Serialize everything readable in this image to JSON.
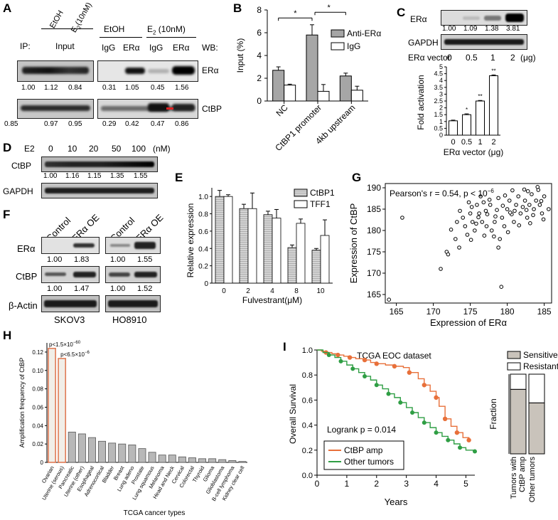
{
  "A": {
    "label": "A",
    "ip_label": "IP:",
    "wb_label": "WB:",
    "hdr_etoh": "EtOH",
    "hdr_e2": "E",
    "hdr_e2_sub": "2",
    "hdr_e2_conc": "(10nM)",
    "hdr_input": "Input",
    "hdr_etoh2": "EtOH",
    "hdr_e2b": "E",
    "hdr_e2b_sub": "2",
    "hdr_e2b_conc": " (10nM)",
    "lanes_right": [
      "IgG",
      "ERα",
      "IgG",
      "ERα"
    ],
    "row1_label": "ERα",
    "row2_label": "CtBP",
    "row1_values": [
      "1.00",
      "1.12",
      "0.84",
      "0.31",
      "1.05",
      "0.45",
      "1.56"
    ],
    "row2_values": [
      "0.85",
      "0.97",
      "0.95",
      "0.29",
      "0.42",
      "0.47",
      "0.86"
    ]
  },
  "B": {
    "label": "B",
    "chart_data": {
      "type": "bar",
      "ylabel": "Input (%)",
      "ylim": [
        0,
        8
      ],
      "yticks": [
        "0",
        "2",
        "4",
        "6",
        "8"
      ],
      "categories": [
        "NC",
        "CtBP1 promoter",
        "4kb upstream"
      ],
      "series": [
        {
          "name": "Anti-ERα",
          "values": [
            2.7,
            5.8,
            2.2
          ],
          "err": [
            0.3,
            0.9,
            0.25
          ],
          "color": "#a6a6a6"
        },
        {
          "name": "IgG",
          "values": [
            1.4,
            0.85,
            0.95
          ],
          "err": [
            0.08,
            0.6,
            0.35
          ],
          "color": "#ffffff"
        }
      ],
      "significance": [
        "*",
        "*"
      ]
    }
  },
  "C": {
    "label": "C",
    "blot_label1": "ERα",
    "blot_label2": "GAPDH",
    "blot_values": [
      "1.00",
      "1.09",
      "1.38",
      "3.81"
    ],
    "vector_label": "ERα vector",
    "vector_doses": [
      "0",
      "0.5",
      "1",
      "2"
    ],
    "vector_unit": "(μg)",
    "chart_data": {
      "type": "bar",
      "ylabel": "Fold activation",
      "xlabel": "ERα vector (μg)",
      "ylim": [
        0,
        5
      ],
      "yticks": [
        "0",
        "0.5",
        "1",
        "1.5",
        "2",
        "2.5",
        "3",
        "3.5",
        "4",
        "4.5",
        "5"
      ],
      "categories": [
        "0",
        "0.5",
        "1",
        "2"
      ],
      "values": [
        1.05,
        1.5,
        2.5,
        4.35
      ],
      "err": [
        0.05,
        0.06,
        0.04,
        0.06
      ],
      "significance": [
        "",
        "*",
        "**",
        "**"
      ]
    }
  },
  "D": {
    "label": "D",
    "e2_label": "E2",
    "doses": [
      "0",
      "10",
      "20",
      "50",
      "100"
    ],
    "unit": "(nM)",
    "row1_label": "CtBP",
    "row2_label": "GAPDH",
    "values": [
      "1.00",
      "1.16",
      "1.15",
      "1.35",
      "1.55"
    ]
  },
  "E": {
    "label": "E",
    "chart_data": {
      "type": "bar",
      "ylabel": "Relative expression",
      "xlabel": "Fulvestrant(μM)",
      "ylim": [
        0,
        1.0
      ],
      "yticks": [
        "0",
        "0.2",
        "0.4",
        "0.6",
        "0.8",
        "1.0"
      ],
      "categories": [
        "0",
        "2",
        "4",
        "8",
        "10"
      ],
      "series": [
        {
          "name": "CtBP1",
          "values": [
            1.0,
            0.86,
            0.79,
            0.41,
            0.38
          ],
          "err": [
            0.07,
            0.05,
            0.04,
            0.03,
            0.02
          ]
        },
        {
          "name": "TFF1",
          "values": [
            1.0,
            0.86,
            0.75,
            0.69,
            0.55
          ],
          "err": [
            0.02,
            0.18,
            0.1,
            0.05,
            0.18
          ]
        }
      ]
    }
  },
  "F": {
    "label": "F",
    "col_labels": [
      "Control",
      "ERα OE",
      "Control",
      "ERα OE"
    ],
    "row_labels": [
      "ERα",
      "CtBP",
      "β-Actin"
    ],
    "era_values": [
      "1.00",
      "1.83",
      "1.00",
      "1.55"
    ],
    "ctbp_values": [
      "1.00",
      "1.47",
      "1.00",
      "1.52"
    ],
    "cell_lines": [
      "SKOV3",
      "HO8910"
    ]
  },
  "G": {
    "label": "G",
    "chart_data": {
      "type": "scatter",
      "annotation": "Pearson's r = 0.54, p < 10",
      "annotation_exp": "−6",
      "xlabel": "Expression of ERα",
      "ylabel": "Expression of CtBP",
      "xlim": [
        163.5,
        186
      ],
      "ylim": [
        163,
        191
      ],
      "xticks": [
        "165",
        "170",
        "175",
        "180",
        "185"
      ],
      "yticks": [
        "165",
        "170",
        "175",
        "180",
        "185",
        "190"
      ],
      "points": [
        [
          164,
          163.8
        ],
        [
          165.8,
          183
        ],
        [
          171,
          171
        ],
        [
          171.8,
          175
        ],
        [
          172,
          174.4
        ],
        [
          173,
          178
        ],
        [
          173.5,
          176
        ],
        [
          173.2,
          182
        ],
        [
          174,
          183
        ],
        [
          174.3,
          181
        ],
        [
          174.6,
          179
        ],
        [
          175,
          184
        ],
        [
          175.3,
          182
        ],
        [
          175.6,
          180
        ],
        [
          175.1,
          177.8
        ],
        [
          175.9,
          186
        ],
        [
          176.2,
          184
        ],
        [
          176.6,
          182
        ],
        [
          176.9,
          178.8
        ],
        [
          177.2,
          181
        ],
        [
          177.3,
          183.8
        ],
        [
          177.7,
          186
        ],
        [
          177.9,
          180
        ],
        [
          178.3,
          182
        ],
        [
          178.6,
          184.8
        ],
        [
          178.8,
          176
        ],
        [
          179,
          178
        ],
        [
          179.3,
          183
        ],
        [
          179.6,
          181
        ],
        [
          179.2,
          166.8
        ],
        [
          180,
          185
        ],
        [
          180.3,
          187
        ],
        [
          180.6,
          183.8
        ],
        [
          180.9,
          182
        ],
        [
          181.2,
          186
        ],
        [
          181.5,
          188
        ],
        [
          181.8,
          184
        ],
        [
          182.1,
          185.5
        ],
        [
          182.4,
          187
        ],
        [
          182.7,
          183
        ],
        [
          183,
          186
        ],
        [
          183.3,
          188.5
        ],
        [
          183.6,
          185
        ],
        [
          183.9,
          187
        ],
        [
          184.2,
          189.5
        ],
        [
          184.4,
          186
        ],
        [
          184.7,
          184
        ],
        [
          185,
          188
        ],
        [
          176.4,
          188
        ],
        [
          175.2,
          185.5
        ],
        [
          177.6,
          187.2
        ],
        [
          179.7,
          188.2
        ],
        [
          181.6,
          181.2
        ],
        [
          183.1,
          181.7
        ],
        [
          178.2,
          178.6
        ],
        [
          180.1,
          179.6
        ],
        [
          176.8,
          186.6
        ],
        [
          174.8,
          186.6
        ],
        [
          182.8,
          189.2
        ],
        [
          184.1,
          190.2
        ],
        [
          184.9,
          182.6
        ],
        [
          182.3,
          189.6
        ],
        [
          180.7,
          189.4
        ],
        [
          178.8,
          187.6
        ],
        [
          177.1,
          184.6
        ],
        [
          175.8,
          181.6
        ],
        [
          173.6,
          184.6
        ],
        [
          179.4,
          185.8
        ],
        [
          181,
          184.6
        ],
        [
          183.5,
          183.6
        ],
        [
          185.6,
          185
        ],
        [
          172.4,
          180.2
        ],
        [
          176.1,
          183.1
        ],
        [
          178.4,
          183.3
        ],
        [
          180.4,
          184.2
        ],
        [
          182.6,
          184.8
        ],
        [
          184.6,
          186.9
        ]
      ]
    }
  },
  "H": {
    "label": "H",
    "chart_data": {
      "type": "bar",
      "ylabel": "Amplification frequency of CtBP",
      "xlabel": "TCGA cancer types",
      "ylim": [
        0,
        0.12
      ],
      "yticks": [
        "0",
        "0.02",
        "0.04",
        "0.06",
        "0.08",
        "0.10",
        "0.12"
      ],
      "categories": [
        "Ovarian",
        "Uterine (serous)",
        "Pancreatic",
        "Uterine (other)",
        "Esophageal",
        "Adrenocortical",
        "Bladder",
        "Breast",
        "Lung adeno",
        "Prostate",
        "Lung squamous",
        "Melanoma",
        "Head and Neck",
        "Cervical",
        "Colorectal",
        "Thyroid",
        "Glioma",
        "Glioblastoma",
        "B-cell lymphoma",
        "Kidney clear cell"
      ],
      "values": [
        0.124,
        0.113,
        0.033,
        0.031,
        0.027,
        0.023,
        0.021,
        0.02,
        0.019,
        0.015,
        0.011,
        0.008,
        0.008,
        0.006,
        0.005,
        0.004,
        0.004,
        0.003,
        0.002,
        0.001
      ],
      "annotations": [
        {
          "text": "p<1.5×10",
          "exp": "−60"
        },
        {
          "text": "p<6.5×10",
          "exp": "−6"
        }
      ],
      "highlight_color": "#e07b56"
    }
  },
  "I": {
    "label": "I",
    "chart_data": {
      "type": "line",
      "title": "TCGA EOC dataset",
      "ylabel": "Overall Survival",
      "xlabel": "Years",
      "xlim": [
        0,
        5.3
      ],
      "ylim": [
        0,
        1.0
      ],
      "xticks": [
        "0",
        "1",
        "2",
        "3",
        "4",
        "5"
      ],
      "yticks": [
        "0.0",
        "0.2",
        "0.4",
        "0.6",
        "0.8",
        "1.0"
      ],
      "logrank": "Logrank p = 0.014",
      "series": [
        {
          "name": "CtBP amp",
          "color": "#e8703a",
          "x": [
            0,
            0.15,
            0.3,
            0.5,
            0.7,
            0.9,
            1.1,
            1.3,
            1.6,
            1.8,
            2.0,
            2.3,
            2.6,
            2.9,
            3.1,
            3.4,
            3.6,
            3.8,
            4.0,
            4.1,
            4.3,
            4.5,
            4.7,
            4.9,
            5.1
          ],
          "y": [
            1.0,
            0.99,
            0.98,
            0.97,
            0.96,
            0.95,
            0.94,
            0.93,
            0.92,
            0.9,
            0.89,
            0.88,
            0.87,
            0.86,
            0.82,
            0.77,
            0.72,
            0.67,
            0.62,
            0.55,
            0.45,
            0.39,
            0.34,
            0.3,
            0.28
          ]
        },
        {
          "name": "Other tumors",
          "color": "#2f9e44",
          "x": [
            0,
            0.2,
            0.4,
            0.6,
            0.8,
            1.0,
            1.2,
            1.4,
            1.6,
            1.8,
            2.0,
            2.2,
            2.4,
            2.6,
            2.8,
            3.0,
            3.2,
            3.4,
            3.6,
            3.8,
            4.0,
            4.2,
            4.4,
            4.6,
            4.8,
            5.0,
            5.3
          ],
          "y": [
            1.0,
            0.98,
            0.96,
            0.94,
            0.91,
            0.88,
            0.85,
            0.82,
            0.79,
            0.76,
            0.72,
            0.69,
            0.65,
            0.62,
            0.58,
            0.54,
            0.5,
            0.46,
            0.42,
            0.38,
            0.34,
            0.31,
            0.28,
            0.25,
            0.22,
            0.2,
            0.19
          ]
        }
      ],
      "legend": [
        "CtBP amp",
        "Other tumors"
      ],
      "fraction": {
        "ylabel": "Fraction",
        "legend": [
          "Sensitive",
          "Resistant"
        ],
        "categories": [
          "Tumors with CtBP amp",
          "Other tumors"
        ],
        "cat_line1": [
          "Tumors with",
          "Other tumors"
        ],
        "cat_line2": [
          "CtBP amp",
          ""
        ],
        "sensitive": [
          0.81,
          0.64
        ],
        "colors": [
          "#c9c3bb",
          "#ffffff"
        ]
      }
    }
  }
}
